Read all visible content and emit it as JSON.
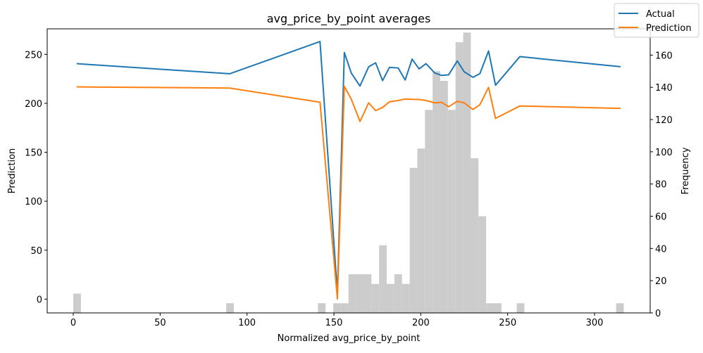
{
  "chart_data": {
    "type": "line",
    "title": "avg_price_by_point averages",
    "xlabel": "Normalized avg_price_by_point",
    "ylabel_left": "Prediction",
    "ylabel_right": "Frequency",
    "xlim": [
      -15,
      332
    ],
    "ylim_left": [
      -14.1,
      276.1
    ],
    "ylim_right": [
      0,
      176.3
    ],
    "x_ticks": [
      0,
      50,
      100,
      150,
      200,
      250,
      300
    ],
    "y_left_ticks": [
      0,
      50,
      100,
      150,
      200,
      250
    ],
    "y_right_ticks": [
      0,
      20,
      40,
      60,
      80,
      100,
      120,
      140,
      160
    ],
    "legend_position": "top-right",
    "series": [
      {
        "name": "Actual",
        "color": "#1f77b4",
        "x": [
          2,
          90,
          142,
          152,
          156,
          160,
          165,
          170,
          174,
          178,
          182,
          187,
          191,
          195,
          199,
          203,
          208,
          212,
          216,
          221,
          225,
          230,
          234,
          239,
          243,
          257,
          315
        ],
        "y": [
          240.5,
          230.2,
          263.1,
          6.0,
          251.9,
          230.9,
          217.7,
          237.3,
          241.4,
          223.2,
          236.8,
          236.1,
          223.8,
          245.2,
          235.2,
          240.5,
          231.1,
          228.5,
          229.1,
          243.3,
          232.2,
          226.6,
          230.3,
          253.5,
          218.5,
          247.7,
          237.4
        ]
      },
      {
        "name": "Prediction",
        "color": "#ff7f0e",
        "x": [
          2,
          90,
          142,
          152,
          156,
          160,
          165,
          170,
          174,
          178,
          182,
          187,
          191,
          195,
          199,
          203,
          208,
          212,
          216,
          221,
          225,
          230,
          234,
          239,
          243,
          257,
          315
        ],
        "y": [
          216.8,
          215.6,
          201.1,
          0.3,
          217.3,
          204.3,
          181.5,
          200.5,
          192.6,
          195.8,
          201.6,
          202.9,
          204.4,
          204.1,
          203.9,
          202.9,
          200.5,
          201.0,
          196.5,
          202.1,
          200.5,
          193.7,
          198.6,
          216.3,
          184.6,
          197.3,
          194.8
        ]
      }
    ],
    "histogram": {
      "name": "Frequency",
      "color": "#cccccc",
      "bin_width": 4.4,
      "bins": [
        {
          "x0": 0,
          "count": 12
        },
        {
          "x0": 88,
          "count": 6
        },
        {
          "x0": 140.8,
          "count": 6
        },
        {
          "x0": 149.6,
          "count": 6
        },
        {
          "x0": 154,
          "count": 6
        },
        {
          "x0": 158.4,
          "count": 24
        },
        {
          "x0": 162.8,
          "count": 24
        },
        {
          "x0": 167.2,
          "count": 24
        },
        {
          "x0": 171.6,
          "count": 18
        },
        {
          "x0": 176,
          "count": 42
        },
        {
          "x0": 180.4,
          "count": 18
        },
        {
          "x0": 184.8,
          "count": 24
        },
        {
          "x0": 189.2,
          "count": 18
        },
        {
          "x0": 193.6,
          "count": 90
        },
        {
          "x0": 198,
          "count": 102
        },
        {
          "x0": 202.4,
          "count": 126
        },
        {
          "x0": 206.8,
          "count": 150
        },
        {
          "x0": 211.2,
          "count": 144
        },
        {
          "x0": 215.6,
          "count": 126
        },
        {
          "x0": 220,
          "count": 168
        },
        {
          "x0": 224.4,
          "count": 174
        },
        {
          "x0": 228.8,
          "count": 96
        },
        {
          "x0": 233.2,
          "count": 60
        },
        {
          "x0": 237.6,
          "count": 6
        },
        {
          "x0": 242,
          "count": 6
        },
        {
          "x0": 255.2,
          "count": 6
        },
        {
          "x0": 312.4,
          "count": 6
        }
      ]
    }
  }
}
